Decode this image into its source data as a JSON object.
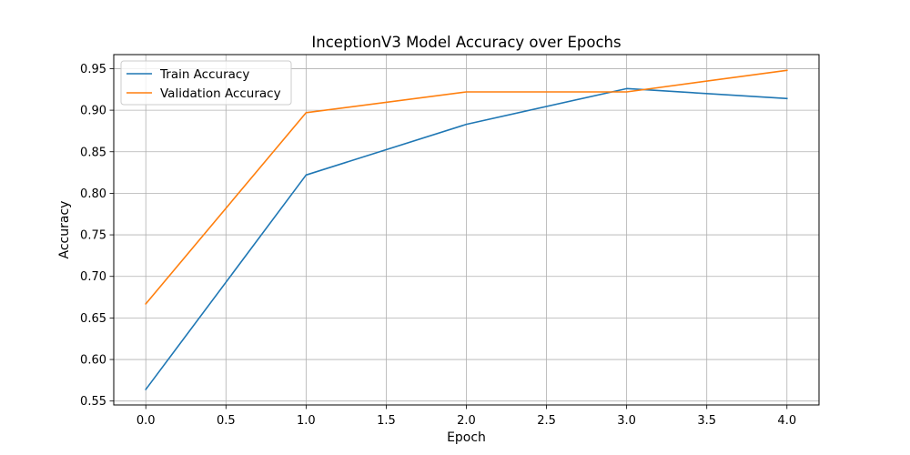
{
  "chart_data": {
    "type": "line",
    "title": "InceptionV3 Model Accuracy over Epochs",
    "xlabel": "Epoch",
    "ylabel": "Accuracy",
    "x": [
      0,
      1,
      2,
      3,
      4
    ],
    "series": [
      {
        "name": "Train Accuracy",
        "values": [
          0.564,
          0.822,
          0.883,
          0.926,
          0.914
        ],
        "color": "#1f77b4"
      },
      {
        "name": "Validation Accuracy",
        "values": [
          0.667,
          0.897,
          0.922,
          0.922,
          0.948
        ],
        "color": "#ff7f0e"
      }
    ],
    "xlim": [
      -0.2,
      4.2
    ],
    "ylim": [
      0.5453,
      0.9669
    ],
    "xticks": [
      0.0,
      0.5,
      1.0,
      1.5,
      2.0,
      2.5,
      3.0,
      3.5,
      4.0
    ],
    "xtick_labels": [
      "0.0",
      "0.5",
      "1.0",
      "1.5",
      "2.0",
      "2.5",
      "3.0",
      "3.5",
      "4.0"
    ],
    "yticks": [
      0.55,
      0.6,
      0.65,
      0.7,
      0.75,
      0.8,
      0.85,
      0.9,
      0.95
    ],
    "ytick_labels": [
      "0.55",
      "0.60",
      "0.65",
      "0.70",
      "0.75",
      "0.80",
      "0.85",
      "0.90",
      "0.95"
    ],
    "grid": true,
    "legend_position": "top-left"
  }
}
